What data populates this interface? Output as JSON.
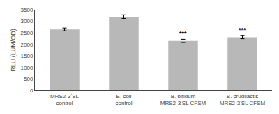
{
  "chart_data": {
    "type": "bar",
    "categories": [
      "MRS2-3ʼSL\ncontrol",
      "E. coli\ncontrol",
      "B. bifidum\nMRS2-3ʼSL CFSM",
      "B. crudilactis\nMRS2-3ʼSL CFSM"
    ],
    "values": [
      2650,
      3200,
      2150,
      2310
    ],
    "errors": [
      60,
      80,
      70,
      65
    ],
    "color": "#b8b8b8",
    "ylabel": "RLU (LUM/OD)",
    "ylim": [
      0,
      3500
    ],
    "yticks": [
      0,
      500,
      1000,
      1500,
      2000,
      2500,
      3000,
      3500
    ],
    "annotations": [
      {
        "text": "***",
        "category": "B. bifidum\nMRS2-3ʼSL CFSM"
      },
      {
        "text": "***",
        "category": "B. crudilactis\nMRS2-3ʼSL CFSM"
      }
    ],
    "grid": false
  }
}
